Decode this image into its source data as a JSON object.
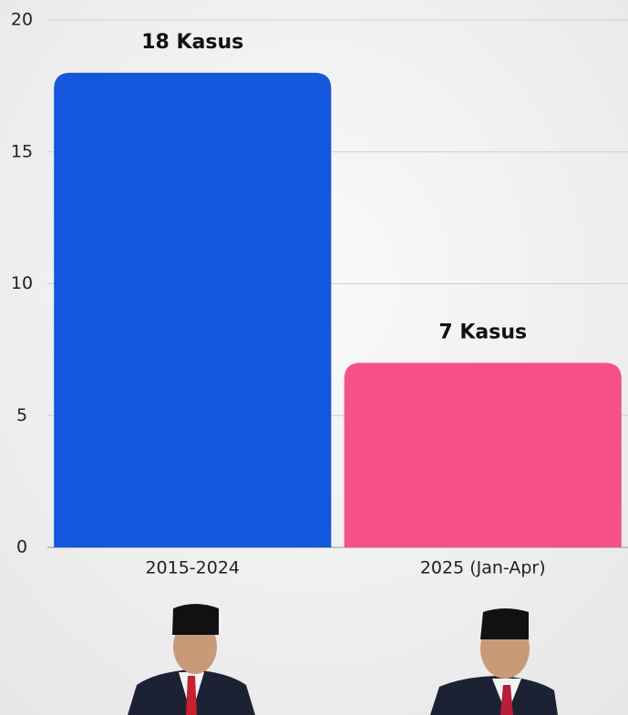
{
  "chart_data": {
    "type": "bar",
    "categories": [
      "2015-2024",
      "2025 (Jan-Apr)"
    ],
    "values": [
      18,
      7
    ],
    "value_labels": [
      "18 Kasus",
      "7 Kasus"
    ],
    "colors": [
      "#1557dc",
      "#f5508a"
    ],
    "ylim": [
      0,
      20
    ],
    "yticks": [
      0,
      5,
      10,
      15,
      20
    ],
    "grid": true
  }
}
